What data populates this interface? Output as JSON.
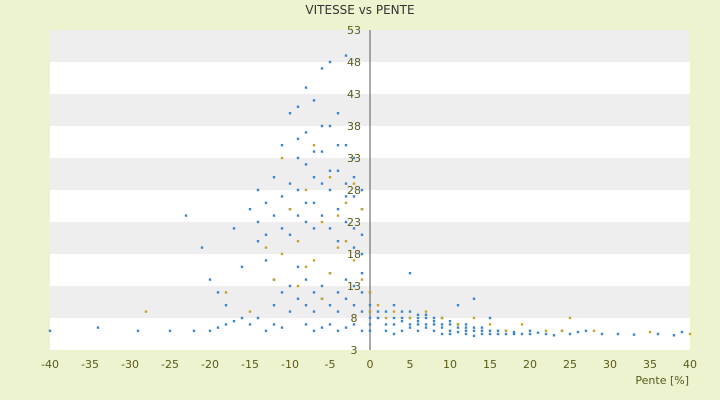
{
  "chart_data": {
    "type": "scatter",
    "title": "VITESSE vs PENTE",
    "xlabel": "Pente [%]",
    "ylabel": "",
    "xlim": [
      -40,
      40
    ],
    "ylim": [
      3,
      53
    ],
    "x_ticks": [
      -40,
      -35,
      -30,
      -25,
      -20,
      -15,
      -10,
      -5,
      0,
      5,
      10,
      15,
      20,
      25,
      30,
      35,
      40
    ],
    "y_ticks": [
      3,
      8,
      13,
      18,
      23,
      28,
      33,
      38,
      43,
      48,
      53
    ],
    "grid": "alternating horizontal bands",
    "legend": "none",
    "colors": {
      "series_primary": "#3a86c8",
      "series_secondary": "#c9a227",
      "plot_band_light": "#ffffff",
      "plot_band_dark": "#eeeeee",
      "background": "#eef3cf",
      "zero_line": "#555555"
    },
    "series": [
      {
        "color": "#3a86c8",
        "points": [
          [
            -40,
            6
          ],
          [
            -34,
            6.5
          ],
          [
            -29,
            6
          ],
          [
            -25,
            6
          ],
          [
            -22,
            6
          ],
          [
            -20,
            6
          ],
          [
            -19,
            6.5
          ],
          [
            -18,
            7
          ],
          [
            -17,
            7.5
          ],
          [
            -16,
            8
          ],
          [
            -15,
            7
          ],
          [
            -14,
            8
          ],
          [
            -13,
            6
          ],
          [
            -12,
            7
          ],
          [
            -11,
            6.5
          ],
          [
            -23,
            24
          ],
          [
            -21,
            19
          ],
          [
            -20,
            14
          ],
          [
            -19,
            12
          ],
          [
            -18,
            10
          ],
          [
            -17,
            22
          ],
          [
            -16,
            16
          ],
          [
            -15,
            25
          ],
          [
            -14,
            28
          ],
          [
            -14,
            20
          ],
          [
            -13,
            17
          ],
          [
            -13,
            26
          ],
          [
            -12,
            14
          ],
          [
            -12,
            30
          ],
          [
            -11,
            22
          ],
          [
            -11,
            35
          ],
          [
            -10,
            25
          ],
          [
            -10,
            40
          ],
          [
            -9,
            28
          ],
          [
            -9,
            33
          ],
          [
            -9,
            41
          ],
          [
            -8,
            23
          ],
          [
            -8,
            37
          ],
          [
            -8,
            44
          ],
          [
            -7,
            30
          ],
          [
            -7,
            26
          ],
          [
            -7,
            42
          ],
          [
            -6,
            29
          ],
          [
            -6,
            34
          ],
          [
            -6,
            47
          ],
          [
            -5,
            28
          ],
          [
            -5,
            48
          ],
          [
            -5,
            38
          ],
          [
            -4,
            31
          ],
          [
            -4,
            25
          ],
          [
            -4,
            40
          ],
          [
            -3,
            49
          ],
          [
            -3,
            27
          ],
          [
            -3,
            35
          ],
          [
            -2,
            22
          ],
          [
            -2,
            30
          ],
          [
            -2,
            19
          ],
          [
            -1,
            18
          ],
          [
            -1,
            25
          ],
          [
            -1,
            15
          ],
          [
            -12,
            10
          ],
          [
            -11,
            12
          ],
          [
            -10,
            9
          ],
          [
            -10,
            13
          ],
          [
            -9,
            11
          ],
          [
            -9,
            16
          ],
          [
            -8,
            10
          ],
          [
            -8,
            14
          ],
          [
            -7,
            12
          ],
          [
            -7,
            9
          ],
          [
            -6,
            13
          ],
          [
            -6,
            11
          ],
          [
            -5,
            10
          ],
          [
            -5,
            15
          ],
          [
            -4,
            12
          ],
          [
            -4,
            9
          ],
          [
            -3,
            11
          ],
          [
            -3,
            14
          ],
          [
            -2,
            10
          ],
          [
            -2,
            13
          ],
          [
            -1,
            9
          ],
          [
            -1,
            12
          ],
          [
            -8,
            7
          ],
          [
            -7,
            6
          ],
          [
            -6,
            6.5
          ],
          [
            -5,
            7
          ],
          [
            -4,
            6
          ],
          [
            -3,
            6.5
          ],
          [
            -2,
            7
          ],
          [
            -1,
            6
          ],
          [
            -14,
            23
          ],
          [
            -13,
            21
          ],
          [
            -12,
            24
          ],
          [
            -11,
            27
          ],
          [
            -10,
            29
          ],
          [
            -10,
            21
          ],
          [
            -9,
            24
          ],
          [
            -9,
            36
          ],
          [
            -8,
            32
          ],
          [
            -8,
            26
          ],
          [
            -7,
            34
          ],
          [
            -7,
            22
          ],
          [
            -6,
            24
          ],
          [
            -6,
            38
          ],
          [
            -5,
            22
          ],
          [
            -5,
            31
          ],
          [
            -4,
            35
          ],
          [
            -4,
            20
          ],
          [
            -3,
            29
          ],
          [
            -3,
            23
          ],
          [
            -2,
            27
          ],
          [
            -2,
            33
          ],
          [
            -1,
            21
          ],
          [
            -1,
            28
          ],
          [
            0,
            6
          ],
          [
            0,
            7
          ],
          [
            0,
            8
          ],
          [
            0,
            9
          ],
          [
            0,
            10
          ],
          [
            0,
            12
          ],
          [
            1,
            9
          ],
          [
            1,
            8
          ],
          [
            2,
            9
          ],
          [
            2,
            7
          ],
          [
            3,
            10
          ],
          [
            3,
            8
          ],
          [
            3,
            7
          ],
          [
            4,
            9
          ],
          [
            4,
            8
          ],
          [
            4,
            7.5
          ],
          [
            5,
            9
          ],
          [
            5,
            8
          ],
          [
            5,
            7
          ],
          [
            5,
            6.5
          ],
          [
            6,
            8.5
          ],
          [
            6,
            8
          ],
          [
            6,
            7
          ],
          [
            6,
            7.5
          ],
          [
            7,
            8
          ],
          [
            7,
            7
          ],
          [
            7,
            6.5
          ],
          [
            7,
            8.5
          ],
          [
            8,
            8
          ],
          [
            8,
            7
          ],
          [
            8,
            7.5
          ],
          [
            9,
            7
          ],
          [
            9,
            8
          ],
          [
            9,
            6.5
          ],
          [
            10,
            7.5
          ],
          [
            10,
            7
          ],
          [
            10,
            6
          ],
          [
            11,
            7
          ],
          [
            11,
            6.5
          ],
          [
            12,
            7
          ],
          [
            12,
            6.5
          ],
          [
            12,
            6
          ],
          [
            13,
            6.5
          ],
          [
            13,
            6
          ],
          [
            14,
            6.5
          ],
          [
            14,
            6
          ],
          [
            15,
            6
          ],
          [
            15,
            5.5
          ],
          [
            16,
            6
          ],
          [
            16,
            5.5
          ],
          [
            17,
            6
          ],
          [
            17,
            5.5
          ],
          [
            18,
            5.8
          ],
          [
            18,
            5.5
          ],
          [
            19,
            5.5
          ],
          [
            20,
            5.5
          ],
          [
            20,
            6
          ],
          [
            21,
            5.7
          ],
          [
            22,
            5.5
          ],
          [
            23,
            5.3
          ],
          [
            24,
            6
          ],
          [
            25,
            5.5
          ],
          [
            26,
            5.8
          ],
          [
            27,
            6
          ],
          [
            29,
            5.5
          ],
          [
            31,
            5.5
          ],
          [
            33,
            5.4
          ],
          [
            36,
            5.5
          ],
          [
            38,
            5.3
          ],
          [
            39,
            5.8
          ],
          [
            5,
            15
          ],
          [
            11,
            10
          ],
          [
            13,
            11
          ],
          [
            15,
            8
          ],
          [
            2,
            6
          ],
          [
            3,
            5.5
          ],
          [
            4,
            6
          ],
          [
            6,
            6
          ],
          [
            8,
            6
          ],
          [
            9,
            5.5
          ],
          [
            10,
            5.5
          ],
          [
            11,
            5.8
          ],
          [
            12,
            5.5
          ],
          [
            13,
            5.2
          ],
          [
            14,
            5.5
          ]
        ]
      },
      {
        "color": "#c9a227",
        "points": [
          [
            -28,
            9
          ],
          [
            -18,
            12
          ],
          [
            -15,
            9
          ],
          [
            -13,
            19
          ],
          [
            -12,
            14
          ],
          [
            -11,
            18
          ],
          [
            -11,
            33
          ],
          [
            -10,
            25
          ],
          [
            -9,
            20
          ],
          [
            -9,
            13
          ],
          [
            -8,
            28
          ],
          [
            -8,
            16
          ],
          [
            -7,
            17
          ],
          [
            -7,
            35
          ],
          [
            -6,
            23
          ],
          [
            -6,
            11
          ],
          [
            -5,
            30
          ],
          [
            -5,
            15
          ],
          [
            -4,
            24
          ],
          [
            -4,
            19
          ],
          [
            -3,
            26
          ],
          [
            -3,
            20
          ],
          [
            -2,
            29
          ],
          [
            -2,
            17
          ],
          [
            -1,
            25
          ],
          [
            -1,
            14
          ],
          [
            0,
            9
          ],
          [
            0,
            12
          ],
          [
            1,
            10
          ],
          [
            2,
            8
          ],
          [
            3,
            9
          ],
          [
            5,
            8
          ],
          [
            7,
            9
          ],
          [
            9,
            8
          ],
          [
            11,
            7
          ],
          [
            13,
            8
          ],
          [
            15,
            7
          ],
          [
            17,
            6
          ],
          [
            19,
            7
          ],
          [
            22,
            6
          ],
          [
            24,
            6
          ],
          [
            25,
            8
          ],
          [
            28,
            6
          ],
          [
            35,
            5.8
          ],
          [
            40,
            5.5
          ]
        ]
      }
    ]
  }
}
